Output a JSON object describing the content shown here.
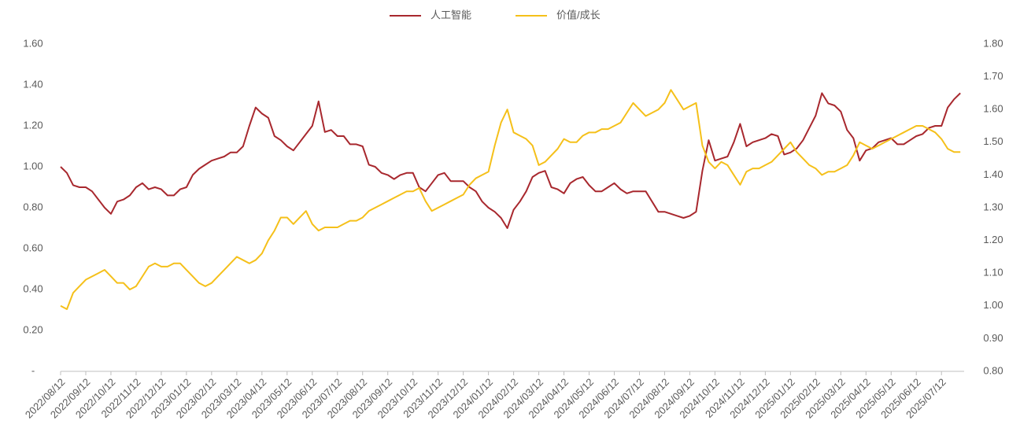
{
  "chart_data": {
    "type": "line",
    "categories": [
      "2022/08/12",
      null,
      null,
      null,
      "2022/09/12",
      null,
      null,
      null,
      "2022/10/12",
      null,
      null,
      null,
      "2022/11/12",
      null,
      null,
      null,
      "2022/12/12",
      null,
      null,
      null,
      "2023/01/12",
      null,
      null,
      null,
      "2023/02/12",
      null,
      null,
      null,
      "2023/03/12",
      null,
      null,
      null,
      "2023/04/12",
      null,
      null,
      null,
      "2023/05/12",
      null,
      null,
      null,
      "2023/06/12",
      null,
      null,
      null,
      "2023/07/12",
      null,
      null,
      null,
      "2023/08/12",
      null,
      null,
      null,
      "2023/09/12",
      null,
      null,
      null,
      "2023/10/12",
      null,
      null,
      null,
      "2023/11/12",
      null,
      null,
      null,
      "2023/12/12",
      null,
      null,
      null,
      "2024/01/12",
      null,
      null,
      null,
      "2024/02/12",
      null,
      null,
      null,
      "2024/03/12",
      null,
      null,
      null,
      "2024/04/12",
      null,
      null,
      null,
      "2024/05/12",
      null,
      null,
      null,
      "2024/06/12",
      null,
      null,
      null,
      "2024/07/12",
      null,
      null,
      null,
      "2024/08/12",
      null,
      null,
      null,
      "2024/09/12",
      null,
      null,
      null,
      "2024/10/12",
      null,
      null,
      null,
      "2024/11/12",
      null,
      null,
      null,
      "2024/12/12",
      null,
      null,
      null,
      "2025/01/12",
      null,
      null,
      null,
      "2025/02/12",
      null,
      null,
      null,
      "2025/03/12",
      null,
      null,
      null,
      "2025/04/12",
      null,
      null,
      null,
      "2025/05/12",
      null,
      null,
      null,
      "2025/06/12",
      null,
      null,
      null,
      "2025/07/12",
      null,
      null,
      null
    ],
    "series": [
      {
        "name": "人工智能",
        "color": "#a8282e",
        "axis": "y",
        "values": [
          1.0,
          0.97,
          0.91,
          0.9,
          0.9,
          0.88,
          0.84,
          0.8,
          0.77,
          0.83,
          0.84,
          0.86,
          0.9,
          0.92,
          0.89,
          0.9,
          0.89,
          0.86,
          0.86,
          0.89,
          0.9,
          0.96,
          0.99,
          1.01,
          1.03,
          1.04,
          1.05,
          1.07,
          1.07,
          1.1,
          1.2,
          1.29,
          1.26,
          1.24,
          1.15,
          1.13,
          1.1,
          1.08,
          1.12,
          1.16,
          1.2,
          1.32,
          1.17,
          1.18,
          1.15,
          1.15,
          1.11,
          1.11,
          1.1,
          1.01,
          1.0,
          0.97,
          0.96,
          0.94,
          0.96,
          0.97,
          0.97,
          0.9,
          0.88,
          0.92,
          0.96,
          0.97,
          0.93,
          0.93,
          0.93,
          0.9,
          0.88,
          0.83,
          0.8,
          0.78,
          0.75,
          0.7,
          0.79,
          0.83,
          0.88,
          0.95,
          0.97,
          0.98,
          0.9,
          0.89,
          0.87,
          0.92,
          0.94,
          0.95,
          0.91,
          0.88,
          0.88,
          0.9,
          0.92,
          0.89,
          0.87,
          0.88,
          0.88,
          0.88,
          0.83,
          0.78,
          0.78,
          0.77,
          0.76,
          0.75,
          0.76,
          0.78,
          0.98,
          1.13,
          1.03,
          1.04,
          1.05,
          1.12,
          1.21,
          1.1,
          1.12,
          1.13,
          1.14,
          1.16,
          1.15,
          1.06,
          1.07,
          1.09,
          1.13,
          1.19,
          1.25,
          1.36,
          1.31,
          1.3,
          1.27,
          1.18,
          1.14,
          1.03,
          1.08,
          1.09,
          1.12,
          1.13,
          1.14,
          1.11,
          1.11,
          1.13,
          1.15,
          1.16,
          1.19,
          1.2,
          1.2,
          1.29,
          1.33,
          1.36
        ]
      },
      {
        "name": "价值/成长",
        "color": "#f5c01a",
        "axis": "y2",
        "values": [
          1.0,
          0.99,
          1.04,
          1.06,
          1.08,
          1.09,
          1.1,
          1.11,
          1.09,
          1.07,
          1.07,
          1.05,
          1.06,
          1.09,
          1.12,
          1.13,
          1.12,
          1.12,
          1.13,
          1.13,
          1.11,
          1.09,
          1.07,
          1.06,
          1.07,
          1.09,
          1.11,
          1.13,
          1.15,
          1.14,
          1.13,
          1.14,
          1.16,
          1.2,
          1.23,
          1.27,
          1.27,
          1.25,
          1.27,
          1.29,
          1.25,
          1.23,
          1.24,
          1.24,
          1.24,
          1.25,
          1.26,
          1.26,
          1.27,
          1.29,
          1.3,
          1.31,
          1.32,
          1.33,
          1.34,
          1.35,
          1.35,
          1.36,
          1.32,
          1.29,
          1.3,
          1.31,
          1.32,
          1.33,
          1.34,
          1.37,
          1.39,
          1.4,
          1.41,
          1.49,
          1.56,
          1.6,
          1.53,
          1.52,
          1.51,
          1.49,
          1.43,
          1.44,
          1.46,
          1.48,
          1.51,
          1.5,
          1.5,
          1.52,
          1.53,
          1.53,
          1.54,
          1.54,
          1.55,
          1.56,
          1.59,
          1.62,
          1.6,
          1.58,
          1.59,
          1.6,
          1.62,
          1.66,
          1.63,
          1.6,
          1.61,
          1.62,
          1.49,
          1.44,
          1.42,
          1.44,
          1.43,
          1.4,
          1.37,
          1.41,
          1.42,
          1.42,
          1.43,
          1.44,
          1.46,
          1.48,
          1.5,
          1.47,
          1.45,
          1.43,
          1.42,
          1.4,
          1.41,
          1.41,
          1.42,
          1.43,
          1.46,
          1.5,
          1.49,
          1.48,
          1.49,
          1.5,
          1.51,
          1.52,
          1.53,
          1.54,
          1.55,
          1.55,
          1.54,
          1.53,
          1.51,
          1.48,
          1.47,
          1.47
        ]
      }
    ],
    "ylim": [
      0,
      1.6
    ],
    "yticks": [
      {
        "value": 0,
        "label": "-"
      },
      {
        "value": 0.2,
        "label": "0.20"
      },
      {
        "value": 0.4,
        "label": "0.40"
      },
      {
        "value": 0.6,
        "label": "0.60"
      },
      {
        "value": 0.8,
        "label": "0.80"
      },
      {
        "value": 1.0,
        "label": "1.00"
      },
      {
        "value": 1.2,
        "label": "1.20"
      },
      {
        "value": 1.4,
        "label": "1.40"
      },
      {
        "value": 1.6,
        "label": "1.60"
      }
    ],
    "y2lim": [
      0.8,
      1.8
    ],
    "y2ticks": [
      {
        "value": 0.8,
        "label": "0.80"
      },
      {
        "value": 0.9,
        "label": "0.90"
      },
      {
        "value": 1.0,
        "label": "1.00"
      },
      {
        "value": 1.1,
        "label": "1.10"
      },
      {
        "value": 1.2,
        "label": "1.20"
      },
      {
        "value": 1.3,
        "label": "1.30"
      },
      {
        "value": 1.4,
        "label": "1.40"
      },
      {
        "value": 1.5,
        "label": "1.50"
      },
      {
        "value": 1.6,
        "label": "1.60"
      },
      {
        "value": 1.7,
        "label": "1.70"
      },
      {
        "value": 1.8,
        "label": "1.80"
      }
    ],
    "grid": false,
    "legend": "top"
  }
}
